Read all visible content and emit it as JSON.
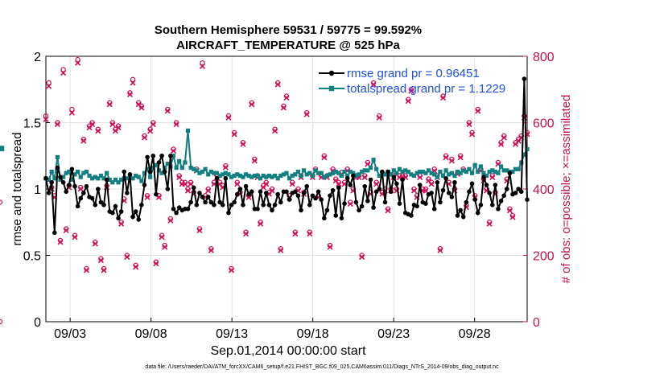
{
  "chart_data": {
    "type": "line",
    "title": "Southern Hemisphere 59531 / 59775 = 99.592%",
    "subtitle": "AIRCRAFT_TEMPERATURE @ 525 hPa",
    "xlabel": "Sep.01,2014 00:00:00 start",
    "ylabel": "rmse and totalspread",
    "ylabel_right": "# of obs: o=possible; ×=assimilated",
    "footnote": "data file: /Users/raeder/DAI/ATM_forcXX/CAM6_setup/f.e21.FHIST_BGC.f09_025.CAM6assim.011/Diags_NTrS_2014-09/obs_diag_output.nc",
    "xlim": [
      1.5,
      31.25
    ],
    "ylim": [
      0,
      2
    ],
    "ylim_right": [
      0,
      800
    ],
    "xticks": [
      3,
      8,
      13,
      18,
      23,
      28
    ],
    "xtick_labels": [
      "09/03",
      "09/08",
      "09/13",
      "09/18",
      "09/23",
      "09/28"
    ],
    "yticks_left": [
      0,
      0.5,
      1,
      1.5,
      2
    ],
    "ytick_labels_left": [
      "0",
      "0.5",
      "1",
      "1.5",
      "2"
    ],
    "yticks_right": [
      0,
      200,
      400,
      600,
      800
    ],
    "ytick_labels_right": [
      "0",
      "200",
      "400",
      "600",
      "800"
    ],
    "grid": true,
    "legend_position": "top-right",
    "colors": {
      "rmse": "#000000",
      "totalspread": "#128080",
      "obs": "#d1105a",
      "legend_text": "#1f4fe0",
      "grid": "#e2e2e2"
    },
    "series": [
      {
        "name": "rmse",
        "label": "rmse  grand pr = 0.96451",
        "values": [
          1.08,
          0.97,
          1.05,
          0.67,
          1.16,
          1.09,
          1.05,
          0.98,
          1.03,
          1.15,
          1.02,
          0.87,
          0.93,
          0.97,
          1.02,
          0.94,
          0.93,
          0.88,
          1.0,
          0.9,
          0.88,
          1.07,
          0.83,
          0.82,
          0.87,
          0.78,
          0.83,
          1.13,
          0.97,
          1.11,
          0.79,
          0.83,
          0.77,
          0.88,
          1.03,
          1.24,
          1.13,
          1.25,
          0.96,
          1.2,
          1.25,
          1.13,
          1.0,
          1.25,
          0.85,
          0.82,
          0.86,
          0.84,
          0.85,
          0.85,
          0.9,
          1.01,
          0.88,
          0.97,
          0.94,
          0.9,
          0.94,
          0.9,
          0.88,
          1.08,
          0.9,
          0.88,
          1.08,
          0.82,
          0.88,
          0.9,
          0.96,
          1.0,
          0.88,
          1.02,
          0.96,
          0.98,
          0.85,
          0.85,
          0.98,
          0.88,
          0.97,
          0.88,
          0.84,
          0.88,
          0.96,
          0.9,
          0.98,
          0.98,
          0.92,
          0.97,
          0.98,
          0.95,
          0.84,
          0.97,
          1.02,
          0.88,
          0.95,
          0.93,
          0.98,
          0.92,
          0.78,
          0.84,
          0.95,
          0.99,
          0.8,
          1.01,
          0.78,
          0.89,
          1.08,
          1.03,
          1.1,
          0.9,
          0.84,
          0.87,
          1.02,
          0.91,
          1.07,
          0.86,
          0.98,
          1.0,
          1.13,
          0.9,
          1.13,
          0.98,
          1.09,
          1.04,
          0.89,
          1.07,
          0.82,
          0.81,
          0.8,
          0.88,
          0.87,
          1.03,
          0.9,
          0.89,
          0.96,
          0.97,
          0.85,
          1.05,
          0.9,
          0.99,
          1.08,
          0.97,
          0.94,
          1.05,
          0.8,
          0.84,
          0.79,
          0.9,
          0.98,
          1.04,
          0.92,
          0.82,
          0.88,
          1.09,
          1.03,
          0.97,
          0.88,
          1.03,
          0.85,
          0.91,
          0.95,
          1.0,
          1.12,
          0.96,
          0.97,
          1.0,
          0.98,
          1.83,
          0.92
        ]
      },
      {
        "name": "totalspread",
        "label": "totalspread grand pr = 1.1229",
        "values": [
          1.08,
          1.07,
          1.13,
          1.08,
          1.24,
          1.07,
          1.09,
          1.12,
          1.13,
          1.07,
          1.11,
          1.13,
          1.09,
          1.12,
          1.13,
          1.1,
          1.08,
          1.09,
          1.08,
          1.1,
          1.08,
          1.12,
          1.07,
          1.05,
          1.07,
          1.05,
          1.07,
          1.08,
          1.08,
          1.1,
          1.08,
          1.1,
          1.09,
          1.06,
          1.12,
          1.15,
          1.09,
          1.16,
          1.18,
          1.14,
          1.12,
          1.16,
          1.19,
          1.17,
          1.25,
          1.16,
          1.21,
          1.16,
          1.2,
          1.44,
          1.16,
          1.15,
          1.14,
          1.12,
          1.13,
          1.15,
          1.11,
          1.13,
          1.12,
          1.12,
          1.1,
          1.11,
          1.12,
          1.11,
          1.09,
          1.1,
          1.11,
          1.1,
          1.09,
          1.11,
          1.1,
          1.09,
          1.1,
          1.1,
          1.08,
          1.1,
          1.09,
          1.1,
          1.09,
          1.1,
          1.08,
          1.1,
          1.11,
          1.12,
          1.08,
          1.1,
          1.11,
          1.13,
          1.1,
          1.14,
          1.11,
          1.12,
          1.1,
          1.14,
          1.12,
          1.12,
          1.09,
          1.1,
          1.11,
          1.12,
          1.13,
          1.12,
          1.1,
          1.13,
          1.1,
          1.13,
          1.12,
          1.1,
          1.11,
          1.13,
          1.14,
          1.14,
          1.16,
          1.22,
          1.15,
          1.1,
          1.12,
          1.11,
          1.13,
          1.11,
          1.14,
          1.12,
          1.15,
          1.13,
          1.14,
          1.13,
          1.11,
          1.1,
          1.12,
          1.13,
          1.13,
          1.12,
          1.14,
          1.12,
          1.11,
          1.09,
          1.13,
          1.1,
          1.14,
          1.11,
          1.12,
          1.1,
          1.13,
          1.12,
          1.14,
          1.13,
          1.15,
          1.12,
          1.18,
          1.13,
          1.17,
          1.12,
          1.1,
          1.13,
          1.14,
          1.13,
          1.12,
          1.17,
          1.14,
          1.14,
          1.13,
          1.13,
          1.15,
          1.15,
          1.2,
          1.26,
          1.3,
          1.3,
          1.31
        ]
      },
      {
        "name": "obs_possible",
        "axis": "right",
        "values": [
          620,
          720,
          405,
          380,
          600,
          245,
          760,
          280,
          410,
          640,
          260,
          790,
          405,
          550,
          160,
          590,
          600,
          240,
          580,
          190,
          160,
          410,
          660,
          600,
          580,
          590,
          300,
          370,
          200,
          690,
          730,
          170,
          660,
          650,
          560,
          380,
          580,
          600,
          180,
          380,
          260,
          230,
          640,
          310,
          520,
          600,
          440,
          420,
          420,
          400,
          420,
          390,
          460,
          280,
          780,
          380,
          400,
          220,
          420,
          440,
          420,
          410,
          470,
          620,
          160,
          570,
          420,
          390,
          540,
          270,
          380,
          660,
          490,
          440,
          300,
          410,
          420,
          390,
          400,
          580,
          720,
          220,
          650,
          680,
          380,
          420,
          270,
          400,
          440,
          390,
          630,
          270,
          440,
          460,
          380,
          440,
          500,
          440,
          230,
          460,
          430,
          420,
          450,
          420,
          460,
          360,
          400,
          440,
          440,
          200,
          440,
          480,
          390,
          720,
          420,
          620,
          390,
          400,
          340,
          400,
          440,
          400,
          440,
          440,
          440,
          670,
          700,
          400,
          380,
          440,
          400,
          400,
          430,
          420,
          460,
          440,
          220,
          680,
          500,
          420,
          490,
          400,
          450,
          500,
          460,
          350,
          600,
          570,
          380,
          640,
          460,
          430,
          400,
          300,
          440,
          390,
          480,
          540,
          560,
          430,
          340,
          320,
          540,
          550,
          560,
          620,
          570,
          360,
          0
        ]
      },
      {
        "name": "obs_assimilated",
        "axis": "right",
        "values": [
          610,
          710,
          400,
          375,
          595,
          240,
          750,
          275,
          405,
          630,
          255,
          780,
          400,
          545,
          155,
          585,
          595,
          235,
          575,
          185,
          155,
          405,
          655,
          595,
          575,
          585,
          295,
          365,
          195,
          685,
          720,
          165,
          655,
          645,
          555,
          375,
          575,
          595,
          175,
          375,
          255,
          225,
          635,
          305,
          515,
          595,
          435,
          415,
          415,
          395,
          415,
          385,
          455,
          275,
          770,
          375,
          395,
          215,
          415,
          435,
          415,
          405,
          465,
          615,
          155,
          565,
          415,
          385,
          535,
          265,
          375,
          655,
          485,
          435,
          295,
          405,
          415,
          385,
          395,
          575,
          715,
          215,
          645,
          675,
          375,
          415,
          265,
          395,
          435,
          385,
          625,
          265,
          435,
          455,
          375,
          435,
          495,
          435,
          225,
          455,
          425,
          415,
          445,
          415,
          455,
          355,
          395,
          435,
          435,
          195,
          435,
          475,
          385,
          715,
          415,
          615,
          385,
          395,
          335,
          395,
          435,
          395,
          435,
          435,
          435,
          665,
          695,
          395,
          375,
          435,
          395,
          395,
          425,
          415,
          455,
          435,
          215,
          675,
          495,
          415,
          485,
          395,
          445,
          495,
          455,
          345,
          595,
          565,
          375,
          635,
          455,
          425,
          395,
          295,
          435,
          385,
          475,
          535,
          555,
          425,
          335,
          315,
          535,
          545,
          555,
          615,
          565,
          355,
          0
        ]
      }
    ]
  }
}
